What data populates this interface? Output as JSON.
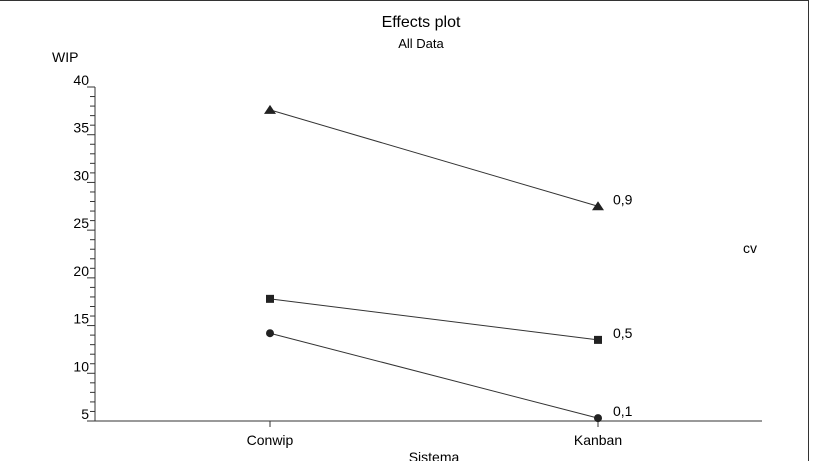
{
  "chart_data": {
    "type": "line",
    "title": "Effects plot",
    "subtitle": "All Data",
    "ylabel": "WIP",
    "xlabel": "Sistema",
    "legend_title": "cv",
    "categories": [
      "Conwip",
      "Kanban"
    ],
    "ylim": [
      5,
      40
    ],
    "yticks": [
      "40",
      "35",
      "30",
      "25",
      "20",
      "15",
      "10",
      "5"
    ],
    "grid": false,
    "series": [
      {
        "name": "0,9",
        "marker": "triangle",
        "values": [
          37.6,
          27.5
        ]
      },
      {
        "name": "0,5",
        "marker": "square",
        "values": [
          17.8,
          13.5
        ]
      },
      {
        "name": "0,1",
        "marker": "circle",
        "values": [
          14.2,
          5.3
        ]
      }
    ]
  },
  "colors": {
    "line": "#333333",
    "marker": "#222222",
    "axis": "#333333",
    "background": "#ffffff"
  }
}
